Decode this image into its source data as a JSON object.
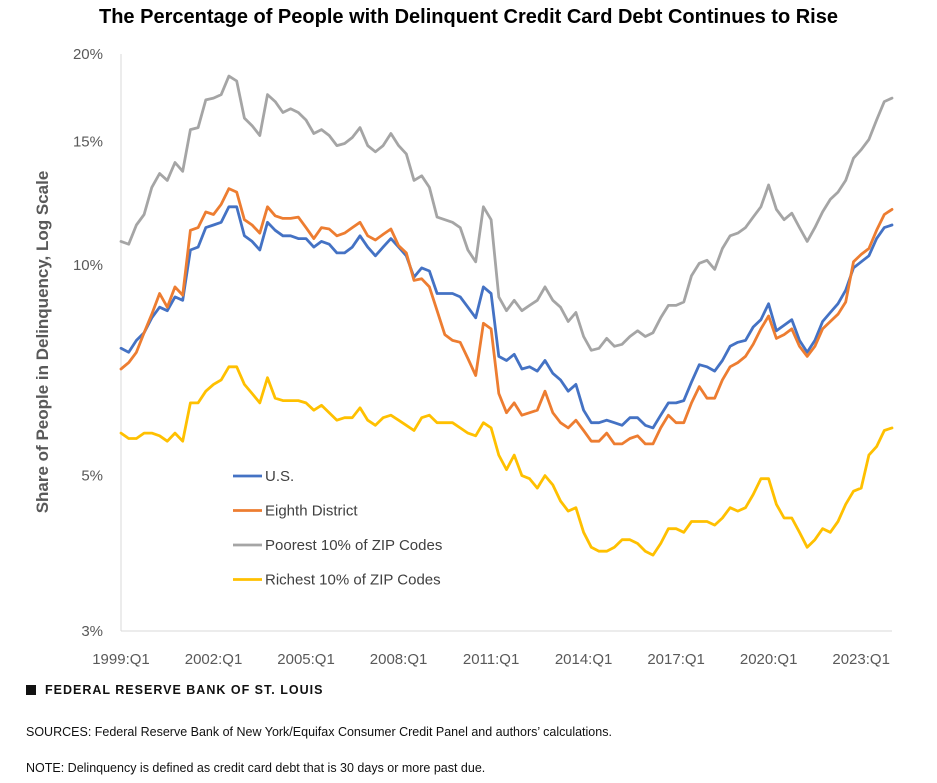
{
  "chart_data": {
    "type": "line",
    "title": "The Percentage of People with Delinquent Credit Card Debt Continues to Rise",
    "ylabel": "Share of People in Delinquency, Log Scale",
    "xlabel": "",
    "y_scale": "log",
    "ylim": [
      3,
      20
    ],
    "y_ticks": [
      3,
      5,
      10,
      15,
      20
    ],
    "y_tick_labels": [
      "3%",
      "5%",
      "10%",
      "15%",
      "20%"
    ],
    "x_tick_labels": [
      "1999:Q1",
      "2002:Q1",
      "2005:Q1",
      "2008:Q1",
      "2011:Q1",
      "2014:Q1",
      "2017:Q1",
      "2020:Q1",
      "2023:Q1"
    ],
    "x_start": "1999:Q1",
    "x_end": "2024:Q1",
    "grid": false,
    "legend_placement": "lower-left inside plot",
    "x": [
      "1999:Q1",
      "1999:Q2",
      "1999:Q3",
      "1999:Q4",
      "2000:Q1",
      "2000:Q2",
      "2000:Q3",
      "2000:Q4",
      "2001:Q1",
      "2001:Q2",
      "2001:Q3",
      "2001:Q4",
      "2002:Q1",
      "2002:Q2",
      "2002:Q3",
      "2002:Q4",
      "2003:Q1",
      "2003:Q2",
      "2003:Q3",
      "2003:Q4",
      "2004:Q1",
      "2004:Q2",
      "2004:Q3",
      "2004:Q4",
      "2005:Q1",
      "2005:Q2",
      "2005:Q3",
      "2005:Q4",
      "2006:Q1",
      "2006:Q2",
      "2006:Q3",
      "2006:Q4",
      "2007:Q1",
      "2007:Q2",
      "2007:Q3",
      "2007:Q4",
      "2008:Q1",
      "2008:Q2",
      "2008:Q3",
      "2008:Q4",
      "2009:Q1",
      "2009:Q2",
      "2009:Q3",
      "2009:Q4",
      "2010:Q1",
      "2010:Q2",
      "2010:Q3",
      "2010:Q4",
      "2011:Q1",
      "2011:Q2",
      "2011:Q3",
      "2011:Q4",
      "2012:Q1",
      "2012:Q2",
      "2012:Q3",
      "2012:Q4",
      "2013:Q1",
      "2013:Q2",
      "2013:Q3",
      "2013:Q4",
      "2014:Q1",
      "2014:Q2",
      "2014:Q3",
      "2014:Q4",
      "2015:Q1",
      "2015:Q2",
      "2015:Q3",
      "2015:Q4",
      "2016:Q1",
      "2016:Q2",
      "2016:Q3",
      "2016:Q4",
      "2017:Q1",
      "2017:Q2",
      "2017:Q3",
      "2017:Q4",
      "2018:Q1",
      "2018:Q2",
      "2018:Q3",
      "2018:Q4",
      "2019:Q1",
      "2019:Q2",
      "2019:Q3",
      "2019:Q4",
      "2020:Q1",
      "2020:Q2",
      "2020:Q3",
      "2020:Q4",
      "2021:Q1",
      "2021:Q2",
      "2021:Q3",
      "2021:Q4",
      "2022:Q1",
      "2022:Q2",
      "2022:Q3",
      "2022:Q4",
      "2023:Q1",
      "2023:Q2",
      "2023:Q3",
      "2023:Q4",
      "2024:Q1"
    ],
    "series": [
      {
        "name": "U.S.",
        "color": "#4472C4",
        "values": [
          7.6,
          7.5,
          7.8,
          8.0,
          8.4,
          8.7,
          8.6,
          9.0,
          8.9,
          10.5,
          10.6,
          11.3,
          11.4,
          11.5,
          12.1,
          12.1,
          11.0,
          10.8,
          10.5,
          11.5,
          11.2,
          11.0,
          11.0,
          10.9,
          10.9,
          10.6,
          10.8,
          10.7,
          10.4,
          10.4,
          10.6,
          11.0,
          10.6,
          10.3,
          10.6,
          10.9,
          10.6,
          10.3,
          9.6,
          9.9,
          9.8,
          9.1,
          9.1,
          9.1,
          9.0,
          8.7,
          8.4,
          9.3,
          9.1,
          7.4,
          7.3,
          7.45,
          7.1,
          7.15,
          7.05,
          7.3,
          7.0,
          6.85,
          6.6,
          6.75,
          6.2,
          5.95,
          5.95,
          6.0,
          5.95,
          5.9,
          6.05,
          6.05,
          5.9,
          5.85,
          6.1,
          6.35,
          6.35,
          6.4,
          6.8,
          7.2,
          7.15,
          7.05,
          7.3,
          7.65,
          7.75,
          7.8,
          8.15,
          8.35,
          8.8,
          8.05,
          8.2,
          8.35,
          7.8,
          7.5,
          7.8,
          8.3,
          8.55,
          8.8,
          9.2,
          9.9,
          10.1,
          10.3,
          10.9,
          11.3,
          11.4
        ]
      },
      {
        "name": "Eighth District",
        "color": "#ED7D31",
        "values": [
          7.1,
          7.25,
          7.5,
          8.0,
          8.5,
          9.1,
          8.7,
          9.3,
          9.05,
          11.2,
          11.3,
          11.9,
          11.8,
          12.2,
          12.85,
          12.7,
          11.6,
          11.4,
          11.1,
          12.1,
          11.75,
          11.65,
          11.65,
          11.7,
          11.3,
          10.9,
          11.3,
          11.25,
          11.0,
          11.1,
          11.3,
          11.5,
          11.0,
          10.85,
          11.05,
          11.25,
          10.65,
          10.4,
          9.5,
          9.55,
          9.3,
          8.6,
          7.95,
          7.8,
          7.75,
          7.35,
          6.95,
          8.25,
          8.1,
          6.55,
          6.15,
          6.35,
          6.1,
          6.15,
          6.2,
          6.6,
          6.15,
          5.95,
          5.85,
          6.0,
          5.8,
          5.6,
          5.6,
          5.75,
          5.55,
          5.55,
          5.65,
          5.7,
          5.55,
          5.55,
          5.85,
          6.1,
          5.95,
          5.95,
          6.35,
          6.7,
          6.45,
          6.45,
          6.85,
          7.15,
          7.25,
          7.4,
          7.7,
          8.1,
          8.45,
          7.85,
          7.95,
          8.1,
          7.65,
          7.4,
          7.65,
          8.1,
          8.3,
          8.5,
          8.85,
          10.1,
          10.35,
          10.55,
          11.2,
          11.8,
          12.0
        ]
      },
      {
        "name": "Poorest 10% of ZIP Codes",
        "color": "#A5A5A5",
        "values": [
          10.8,
          10.7,
          11.4,
          11.8,
          12.9,
          13.5,
          13.2,
          14.0,
          13.6,
          15.6,
          15.7,
          17.2,
          17.3,
          17.5,
          18.6,
          18.3,
          16.2,
          15.8,
          15.3,
          17.5,
          17.1,
          16.5,
          16.7,
          16.5,
          16.1,
          15.4,
          15.6,
          15.3,
          14.8,
          14.9,
          15.2,
          15.7,
          14.8,
          14.5,
          14.8,
          15.4,
          14.8,
          14.4,
          13.2,
          13.4,
          12.9,
          11.7,
          11.6,
          11.5,
          11.3,
          10.5,
          10.1,
          12.1,
          11.6,
          9.0,
          8.6,
          8.9,
          8.6,
          8.75,
          8.9,
          9.3,
          8.9,
          8.7,
          8.3,
          8.55,
          7.9,
          7.55,
          7.6,
          7.85,
          7.65,
          7.7,
          7.9,
          8.05,
          7.9,
          8.0,
          8.4,
          8.75,
          8.75,
          8.85,
          9.65,
          10.05,
          10.15,
          9.85,
          10.55,
          11.0,
          11.1,
          11.3,
          11.7,
          12.1,
          13.0,
          12.0,
          11.6,
          11.85,
          11.3,
          10.8,
          11.3,
          11.9,
          12.4,
          12.7,
          13.2,
          14.2,
          14.6,
          15.1,
          16.1,
          17.1,
          17.3
        ]
      },
      {
        "name": "Richest 10% of ZIP Codes",
        "color": "#FFC000",
        "values": [
          5.75,
          5.65,
          5.65,
          5.75,
          5.75,
          5.7,
          5.6,
          5.75,
          5.6,
          6.35,
          6.35,
          6.6,
          6.75,
          6.85,
          7.15,
          7.15,
          6.75,
          6.55,
          6.35,
          6.9,
          6.45,
          6.4,
          6.4,
          6.4,
          6.35,
          6.2,
          6.3,
          6.15,
          6.0,
          6.05,
          6.05,
          6.25,
          6.0,
          5.9,
          6.05,
          6.1,
          6.0,
          5.9,
          5.8,
          6.05,
          6.1,
          5.95,
          5.95,
          5.95,
          5.85,
          5.75,
          5.7,
          5.95,
          5.85,
          5.35,
          5.1,
          5.35,
          5.0,
          4.95,
          4.8,
          5.0,
          4.85,
          4.6,
          4.45,
          4.5,
          4.15,
          3.95,
          3.9,
          3.9,
          3.95,
          4.05,
          4.05,
          4.0,
          3.9,
          3.85,
          4.0,
          4.2,
          4.2,
          4.15,
          4.3,
          4.3,
          4.3,
          4.25,
          4.35,
          4.5,
          4.45,
          4.5,
          4.7,
          4.95,
          4.95,
          4.55,
          4.35,
          4.35,
          4.15,
          3.95,
          4.05,
          4.2,
          4.15,
          4.3,
          4.55,
          4.75,
          4.8,
          5.35,
          5.5,
          5.8,
          5.85
        ]
      }
    ]
  },
  "footer": {
    "brand": "FEDERAL RESERVE BANK OF ST. LOUIS",
    "sources": "SOURCES: Federal Reserve Bank of New York/Equifax Consumer Credit Panel and authors’ calculations.",
    "note": "NOTE: Delinquency is defined as credit card debt that is 30 days or more past due."
  }
}
